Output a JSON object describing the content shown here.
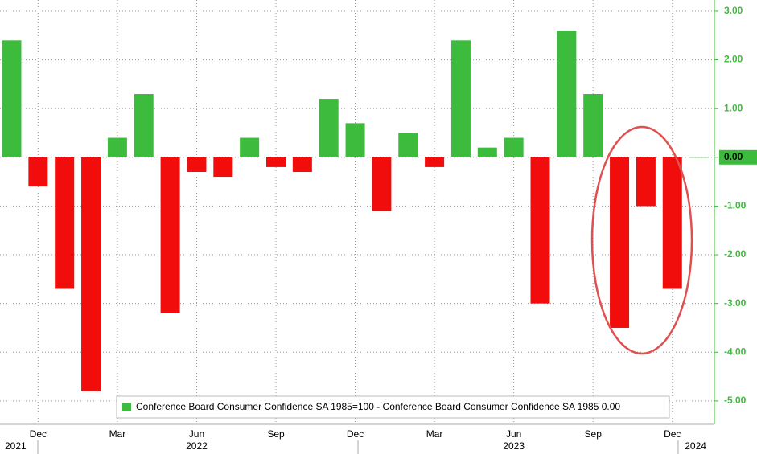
{
  "chart_data": {
    "type": "bar",
    "categories": [
      null,
      "Dec",
      null,
      null,
      "Mar",
      null,
      null,
      "Jun",
      null,
      null,
      "Sep",
      null,
      null,
      "Dec",
      null,
      null,
      "Mar",
      null,
      null,
      "Jun",
      null,
      null,
      "Sep",
      null,
      null,
      "Dec",
      null
    ],
    "year_labels": [
      "2021",
      "2022",
      "2023",
      "2024"
    ],
    "series": [
      {
        "name": "Conference Board Consumer Confidence SA 1985=100 - Conference Board Consumer Confidence SA 1985 0.00",
        "color": "#3dbb3d",
        "negative_color": "#f20d0d",
        "values": [
          2.4,
          -0.6,
          -2.7,
          -4.8,
          0.4,
          1.3,
          -3.2,
          -0.3,
          -0.4,
          0.4,
          -0.2,
          -0.3,
          1.2,
          0.7,
          -1.1,
          0.5,
          -0.2,
          2.4,
          0.2,
          0.4,
          -3.0,
          2.6,
          1.3,
          -3.5,
          -1.0,
          -2.7,
          0
        ]
      }
    ],
    "ylim": [
      -5.48,
      3.23
    ],
    "yticks": [
      {
        "value": 3,
        "label": "3.00"
      },
      {
        "value": 2,
        "label": "2.00"
      },
      {
        "value": 1,
        "label": "1.00"
      },
      {
        "value": 0,
        "label": "0.00"
      },
      {
        "value": -1,
        "label": "-1.00"
      },
      {
        "value": -2,
        "label": "-2.00"
      },
      {
        "value": -3,
        "label": "-3.00"
      },
      {
        "value": -4,
        "label": "-4.00"
      },
      {
        "value": -5,
        "label": "-5.00"
      }
    ],
    "grid": true,
    "axis_side": "right",
    "tick_color": "#3dbb3d"
  }
}
